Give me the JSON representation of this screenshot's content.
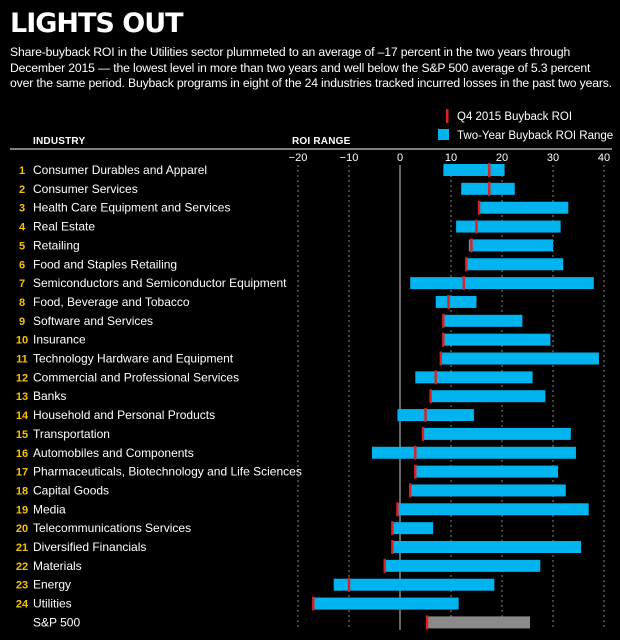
{
  "title": "LIGHTS OUT",
  "subtitle": "Share-buyback ROI in the Utilities sector plummeted to an average of –17 percent in the two years through December 2015 — the lowest level in more than two years and well below the S&P 500 average of 5.3 percent over the same period. Buyback programs in eight of the 24 industries tracked incurred losses in the past two years.",
  "colors": {
    "range": "#00b4f0",
    "q4": "#e0201c",
    "sp_range": "#8a8a8a",
    "number": "#f5c200"
  },
  "chart_data": {
    "type": "bar",
    "column_header": "INDUSTRY",
    "axis_header": "ROI RANGE",
    "ticks": [
      -20,
      -10,
      0,
      10,
      20,
      30,
      40
    ],
    "tick_labels": [
      "−20",
      "−10",
      "0",
      "10",
      "20",
      "30",
      "40"
    ],
    "xlim": [
      -20,
      40
    ],
    "grid": true,
    "legend_position": "top-right",
    "legend": {
      "q4": "Q4 2015 Buyback ROI",
      "range": "Two-Year Buyback ROI Range"
    },
    "series": [
      {
        "name": "Two-Year Buyback ROI Range",
        "low": [
          8.5,
          12,
          15.5,
          11,
          13.5,
          13,
          2,
          7,
          8.5,
          8.5,
          8,
          3,
          6,
          -0.5,
          4.5,
          -5.5,
          3,
          2,
          -0.5,
          -1.5,
          -1.5,
          -3,
          -13,
          -17,
          5.3
        ],
        "high": [
          20.5,
          22.5,
          33,
          31.5,
          30,
          32,
          38,
          15,
          24,
          29.5,
          39,
          26,
          28.5,
          14.5,
          33.5,
          34.5,
          31,
          32.5,
          37,
          6.5,
          35.5,
          27.5,
          18.5,
          11.5,
          25.5
        ]
      },
      {
        "name": "Q4 2015 Buyback ROI",
        "values": [
          17.5,
          17.5,
          15.5,
          15,
          14,
          13,
          12.5,
          9.5,
          8.5,
          8.5,
          8,
          7,
          6,
          5,
          4.5,
          3,
          3,
          2,
          -0.5,
          -1.5,
          -1.5,
          -3,
          -10,
          -17,
          5.3
        ]
      }
    ],
    "categories": [
      {
        "num": "1",
        "label": "Consumer Durables and Apparel"
      },
      {
        "num": "2",
        "label": "Consumer Services"
      },
      {
        "num": "3",
        "label": "Health Care Equipment and Services"
      },
      {
        "num": "4",
        "label": "Real Estate"
      },
      {
        "num": "5",
        "label": "Retailing"
      },
      {
        "num": "6",
        "label": "Food and Staples Retailing"
      },
      {
        "num": "7",
        "label": "Semiconductors and Semiconductor Equipment"
      },
      {
        "num": "8",
        "label": "Food, Beverage and Tobacco"
      },
      {
        "num": "9",
        "label": "Software and Services"
      },
      {
        "num": "10",
        "label": "Insurance"
      },
      {
        "num": "11",
        "label": "Technology Hardware and Equipment"
      },
      {
        "num": "12",
        "label": "Commercial and Professional Services"
      },
      {
        "num": "13",
        "label": "Banks"
      },
      {
        "num": "14",
        "label": "Household and Personal Products"
      },
      {
        "num": "15",
        "label": "Transportation"
      },
      {
        "num": "16",
        "label": "Automobiles and Components"
      },
      {
        "num": "17",
        "label": "Pharmaceuticals, Biotechnology and Life Sciences"
      },
      {
        "num": "18",
        "label": "Capital Goods"
      },
      {
        "num": "19",
        "label": "Media"
      },
      {
        "num": "20",
        "label": "Telecommunications Services"
      },
      {
        "num": "21",
        "label": "Diversified Financials"
      },
      {
        "num": "22",
        "label": "Materials"
      },
      {
        "num": "23",
        "label": "Energy"
      },
      {
        "num": "24",
        "label": "Utilities"
      },
      {
        "num": "",
        "label": "S&P 500"
      }
    ]
  }
}
